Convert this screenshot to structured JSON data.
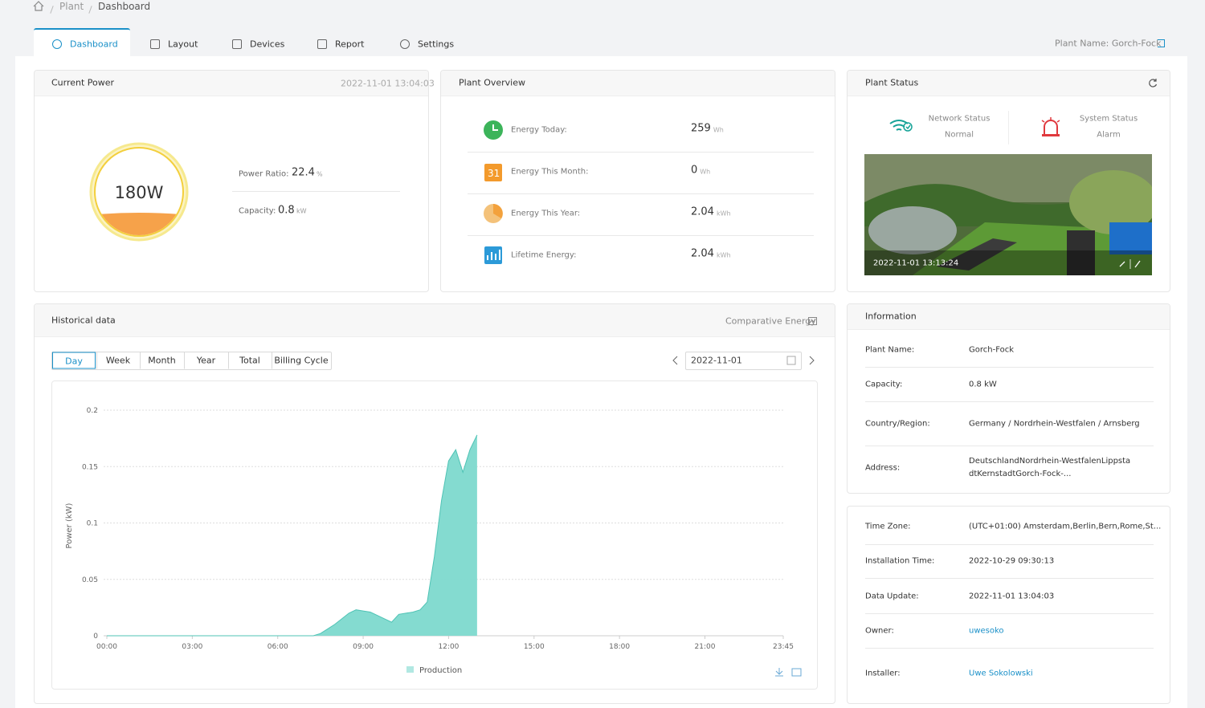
{
  "breadcrumb": [
    "Plant",
    "Dashboard"
  ],
  "tabs": [
    "Dashboard",
    "Layout",
    "Devices",
    "Report",
    "Settings"
  ],
  "plant_name": "Plant Name: Gorch-Fock",
  "current_power": {
    "title": "Current Power",
    "timestamp": "2022-11-01 13:04:03",
    "gauge": "180W",
    "power_ratio": {
      "label": "Power Ratio:",
      "value": "22.4",
      "unit": "%"
    },
    "capacity": {
      "label": "Capacity:",
      "value": "0.8",
      "unit": "kW"
    }
  },
  "plant_overview": {
    "title": "Plant Overview",
    "calendar_icon": "31",
    "items": [
      {
        "label": "Energy Today:",
        "value": "259",
        "unit": "Wh"
      },
      {
        "label": "Energy This Month:",
        "value": "0",
        "unit": "Wh"
      },
      {
        "label": "Energy This Year:",
        "value": "2.04",
        "unit": "kWh"
      },
      {
        "label": "Lifetime Energy:",
        "value": "2.04",
        "unit": "kWh"
      }
    ]
  },
  "plant_status": {
    "title": "Plant Status",
    "network": {
      "label": "Network Status",
      "value": "Normal"
    },
    "system": {
      "label": "System Status",
      "value": "Alarm"
    },
    "photo_timestamp": "2022-11-01 13:13:24"
  },
  "historical": {
    "title": "Historical data",
    "comparative": "Comparative Energy",
    "ranges": [
      "Day",
      "Week",
      "Month",
      "Year",
      "Total",
      "Billing Cycle"
    ],
    "date": "2022-11-01"
  },
  "information": {
    "title": "Information",
    "rows": [
      [
        "Plant Name:",
        "Gorch-Fock"
      ],
      [
        "Capacity:",
        "0.8 kW"
      ],
      [
        "Country/Region:",
        "Germany / Nordrhein-Westfalen / Arnsberg"
      ],
      [
        "Address:",
        "DeutschlandNordrhein-WestfalenLippstadtKernstadtGorch-Fock-..."
      ]
    ],
    "rows2": [
      [
        "Time Zone:",
        "(UTC+01:00) Amsterdam,Berlin,Bern,Rome,St..."
      ],
      [
        "Installation Time:",
        "2022-10-29 09:30:13"
      ],
      [
        "Data Update:",
        "2022-11-01 13:04:03"
      ],
      [
        "Owner:",
        "uwesoko"
      ],
      [
        "Installer:",
        "Uwe Sokolowski"
      ]
    ]
  },
  "chart_data": {
    "type": "area",
    "y_label": "Power (kW)",
    "grid": true,
    "categories": [
      "00:00",
      null,
      null,
      null,
      null,
      null,
      null,
      null,
      null,
      null,
      null,
      null,
      "03:00",
      null,
      null,
      null,
      null,
      null,
      null,
      null,
      null,
      null,
      null,
      null,
      "06:00",
      null,
      null,
      null,
      null,
      null,
      null,
      null,
      null,
      null,
      null,
      null,
      "09:00",
      null,
      null,
      null,
      null,
      null,
      null,
      null,
      null,
      null,
      null,
      null,
      "12:00",
      null,
      null,
      null,
      null,
      null,
      null,
      null,
      null,
      null,
      null,
      null,
      "15:00",
      null,
      null,
      null,
      null,
      null,
      null,
      null,
      null,
      null,
      null,
      null,
      "18:00",
      null,
      null,
      null,
      null,
      null,
      null,
      null,
      null,
      null,
      null,
      null,
      "21:00",
      null,
      null,
      null,
      null,
      null,
      null,
      null,
      null,
      null,
      null,
      "23:45"
    ],
    "series": [
      {
        "name": "Production",
        "color": "#7dd9ce",
        "values": [
          0,
          0,
          0,
          0,
          0,
          0,
          0,
          0,
          0,
          0,
          0,
          0,
          0,
          0,
          0,
          0,
          0,
          0,
          0,
          0,
          0,
          0,
          0,
          0,
          0,
          0,
          0,
          0,
          0,
          0,
          0.002,
          0.006,
          0.01,
          0.015,
          0.02,
          0.023,
          0.022,
          0.021,
          0.018,
          0.015,
          0.012,
          0.019,
          0.02,
          0.021,
          0.023,
          0.03,
          0.07,
          0.12,
          0.155,
          0.165,
          0.145,
          0.165,
          0.178,
          null,
          null,
          null,
          null,
          null,
          null,
          null,
          null,
          null,
          null,
          null,
          null,
          null,
          null,
          null,
          null,
          null,
          null,
          null,
          null,
          null,
          null,
          null,
          null,
          null,
          null,
          null,
          null,
          null,
          null,
          null,
          null,
          null,
          null,
          null,
          null,
          null,
          null,
          null,
          null,
          null,
          null,
          null
        ]
      }
    ],
    "ylim": [
      0,
      0.2
    ],
    "yticks": [
      0,
      0.05,
      0.1,
      0.15,
      0.2
    ]
  }
}
